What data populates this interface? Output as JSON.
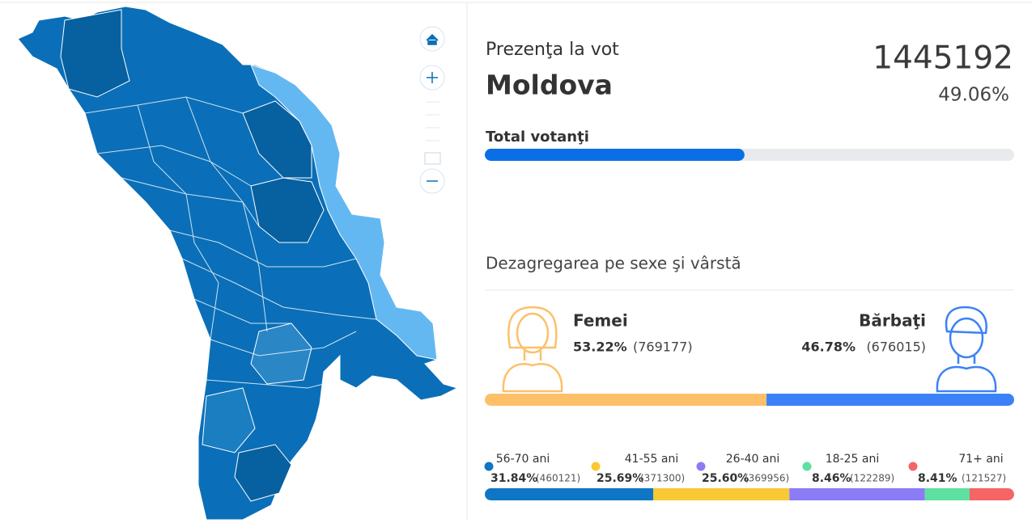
{
  "turnout": {
    "title": "Prezenţa la vot",
    "region": "Moldova",
    "total": 1445192,
    "percent": 49.06,
    "percent_label": "49.06%",
    "bar_label": "Total votanţi"
  },
  "breakdown": {
    "title": "Dezagregarea pe sexe şi vârstă",
    "gender": [
      {
        "name": "Femei",
        "percent": 53.22,
        "percent_label": "53.22%",
        "count": "(769177)",
        "color": "#fdc069"
      },
      {
        "name": "Bărbaţi",
        "percent": 46.78,
        "percent_label": "46.78%",
        "count": "(676015)",
        "color": "#3b82f6"
      }
    ],
    "age": [
      {
        "name": "56-70 ani",
        "percent": 31.84,
        "percent_label": "31.84%",
        "count": "(460121)",
        "color": "#0e76c4"
      },
      {
        "name": "41-55 ani",
        "percent": 25.69,
        "percent_label": "25.69%",
        "count": "(371300)",
        "color": "#f9c833"
      },
      {
        "name": "26-40 ani",
        "percent": 25.6,
        "percent_label": "25.60%",
        "count": "(369956)",
        "color": "#8b7cf6"
      },
      {
        "name": "18-25 ani",
        "percent": 8.46,
        "percent_label": "8.46%",
        "count": "(122289)",
        "color": "#5ee0a0"
      },
      {
        "name": "71+ ani",
        "percent": 8.41,
        "percent_label": "8.41%",
        "count": "(121527)",
        "color": "#f56565"
      }
    ]
  }
}
